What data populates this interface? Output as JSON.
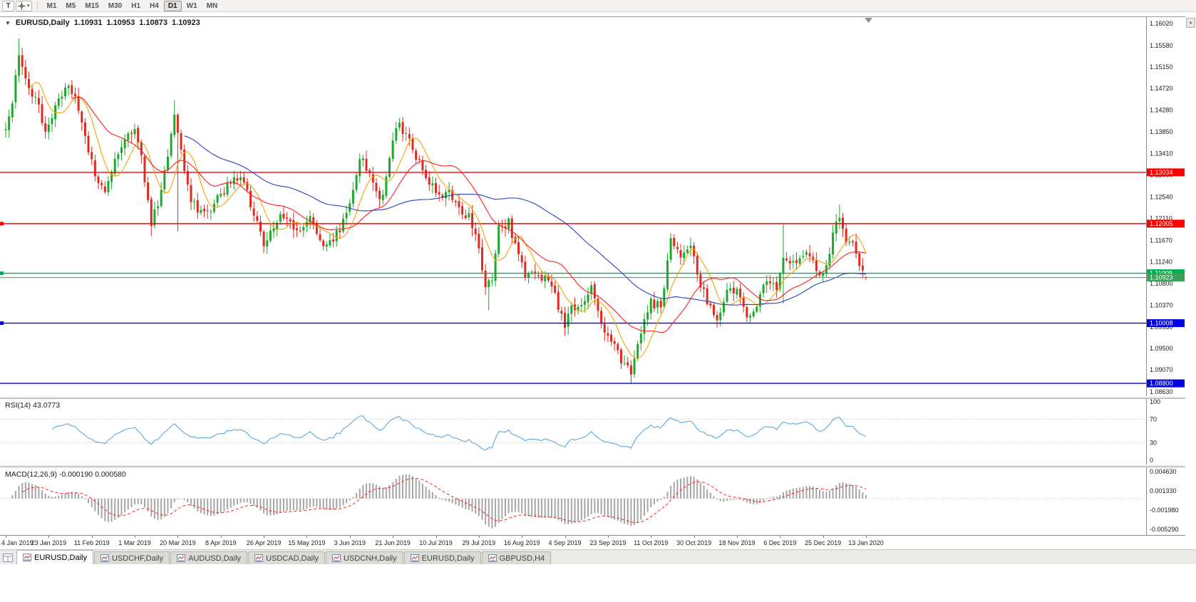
{
  "toolbar": {
    "t_button_label": "T",
    "timeframes": [
      "M1",
      "M5",
      "M15",
      "M30",
      "H1",
      "H4",
      "D1",
      "W1",
      "MN"
    ],
    "active_timeframe": "D1"
  },
  "chart": {
    "title": {
      "symbol_period": "EURUSD,Daily",
      "open": "1.10931",
      "high": "1.10953",
      "low": "1.10873",
      "close": "1.10923"
    },
    "current_price": {
      "label": "1.10923",
      "value": 1.10923,
      "color": "#3aa05a"
    }
  },
  "indicators": {
    "rsi": {
      "label": "RSI(14) 43.0773",
      "period": 14,
      "current_value": "43.0773",
      "levels": [
        70,
        30
      ],
      "axis_labels": [
        {
          "text": "100",
          "value": 100
        },
        {
          "text": "70",
          "value": 70
        },
        {
          "text": "30",
          "value": 30
        },
        {
          "text": "0",
          "value": 0
        }
      ],
      "color": "#5da9dc"
    },
    "macd": {
      "label": "MACD(12,26,9) -0.000190 0.000580",
      "fast": 12,
      "slow": 26,
      "signal": 9,
      "current_main": "-0.000190",
      "current_signal": "0.000580",
      "scale_top": 0.00463,
      "scale_bottom": -0.00529,
      "axis_labels": [
        {
          "text": "0.004630",
          "value": 0.00463
        },
        {
          "text": "0.001330",
          "value": 0.00133
        },
        {
          "text": "-0.001980",
          "value": -0.00198
        },
        {
          "text": "-0.005290",
          "value": -0.00529
        }
      ],
      "hist_color": "#a6a6a6",
      "signal_color": "#ff2020"
    }
  },
  "tabs": [
    {
      "label": "EURUSD,Daily",
      "active": true
    },
    {
      "label": "USDCHF,Daily",
      "active": false
    },
    {
      "label": "AUDUSD,Daily",
      "active": false
    },
    {
      "label": "USDCAD,Daily",
      "active": false
    },
    {
      "label": "USDCNH,Daily",
      "active": false
    },
    {
      "label": "EURUSD,Daily",
      "active": false
    },
    {
      "label": "GBPUSD,H4",
      "active": false
    }
  ],
  "chart_data": {
    "type": "candlestick",
    "symbol": "EURUSD",
    "timeframe": "Daily",
    "bar_count": 261,
    "bars_per_x_label": 13,
    "ylim": [
      1.0863,
      1.1602
    ],
    "y_ticks": [
      "1.16020",
      "1.15580",
      "1.15150",
      "1.14720",
      "1.14280",
      "1.13850",
      "1.13410",
      "1.12980",
      "1.12540",
      "1.12110",
      "1.11670",
      "1.11240",
      "1.10800",
      "1.10370",
      "1.09930",
      "1.09500",
      "1.09070",
      "1.08630"
    ],
    "x_labels": [
      "4 Jan 2019",
      "23 Jan 2019",
      "11 Feb 2019",
      "1 Mar 2019",
      "20 Mar 2019",
      "8 Apr 2019",
      "26 Apr 2019",
      "15 May 2019",
      "3 Jun 2019",
      "21 Jun 2019",
      "10 Jul 2019",
      "29 Jul 2019",
      "16 Aug 2019",
      "4 Sep 2019",
      "23 Sep 2019",
      "11 Oct 2019",
      "30 Oct 2019",
      "18 Nov 2019",
      "6 Dec 2019",
      "25 Dec 2019",
      "13 Jan 2020"
    ],
    "last_bar": {
      "open": 1.10931,
      "high": 1.10953,
      "low": 1.10873,
      "close": 1.10923
    },
    "price_path_anchors": [
      [
        0,
        1.1398
      ],
      [
        2,
        1.1445
      ],
      [
        4,
        1.1535
      ],
      [
        6,
        1.1485
      ],
      [
        9,
        1.145
      ],
      [
        12,
        1.1388
      ],
      [
        15,
        1.143
      ],
      [
        18,
        1.1478
      ],
      [
        21,
        1.1452
      ],
      [
        24,
        1.137
      ],
      [
        27,
        1.1295
      ],
      [
        30,
        1.127
      ],
      [
        33,
        1.133
      ],
      [
        36,
        1.1372
      ],
      [
        39,
        1.1398
      ],
      [
        41,
        1.133
      ],
      [
        44,
        1.1205
      ],
      [
        46,
        1.124
      ],
      [
        49,
        1.133
      ],
      [
        51,
        1.1425
      ],
      [
        53,
        1.134
      ],
      [
        56,
        1.1245
      ],
      [
        60,
        1.1218
      ],
      [
        63,
        1.124
      ],
      [
        66,
        1.1265
      ],
      [
        69,
        1.1302
      ],
      [
        72,
        1.128
      ],
      [
        75,
        1.1225
      ],
      [
        78,
        1.1155
      ],
      [
        80,
        1.1182
      ],
      [
        83,
        1.122
      ],
      [
        86,
        1.1198
      ],
      [
        89,
        1.1178
      ],
      [
        92,
        1.1208
      ],
      [
        95,
        1.1168
      ],
      [
        98,
        1.1158
      ],
      [
        101,
        1.1192
      ],
      [
        104,
        1.1242
      ],
      [
        107,
        1.1332
      ],
      [
        110,
        1.1308
      ],
      [
        113,
        1.1242
      ],
      [
        115,
        1.1292
      ],
      [
        117,
        1.1372
      ],
      [
        119,
        1.1398
      ],
      [
        122,
        1.1368
      ],
      [
        125,
        1.1322
      ],
      [
        128,
        1.1288
      ],
      [
        131,
        1.1252
      ],
      [
        134,
        1.1272
      ],
      [
        137,
        1.1228
      ],
      [
        140,
        1.1212
      ],
      [
        143,
        1.1148
      ],
      [
        145,
        1.1078
      ],
      [
        147,
        1.1088
      ],
      [
        149,
        1.1196
      ],
      [
        152,
        1.1202
      ],
      [
        155,
        1.1132
      ],
      [
        157,
        1.1098
      ],
      [
        160,
        1.1108
      ],
      [
        163,
        1.1088
      ],
      [
        166,
        1.1058
      ],
      [
        169,
        1.0992
      ],
      [
        171,
        1.1036
      ],
      [
        174,
        1.1028
      ],
      [
        177,
        1.1068
      ],
      [
        180,
        1.1005
      ],
      [
        183,
        1.0962
      ],
      [
        186,
        1.0925
      ],
      [
        189,
        1.0898
      ],
      [
        192,
        1.0982
      ],
      [
        195,
        1.1042
      ],
      [
        198,
        1.1032
      ],
      [
        201,
        1.1165
      ],
      [
        204,
        1.1132
      ],
      [
        207,
        1.1152
      ],
      [
        210,
        1.1078
      ],
      [
        213,
        1.1028
      ],
      [
        215,
        1.1008
      ],
      [
        218,
        1.1062
      ],
      [
        221,
        1.1072
      ],
      [
        224,
        1.1008
      ],
      [
        227,
        1.1042
      ],
      [
        230,
        1.1082
      ],
      [
        233,
        1.1068
      ],
      [
        235,
        1.1132
      ],
      [
        238,
        1.1122
      ],
      [
        241,
        1.1142
      ],
      [
        244,
        1.1122
      ],
      [
        247,
        1.1092
      ],
      [
        250,
        1.1178
      ],
      [
        252,
        1.1212
      ],
      [
        254,
        1.1172
      ],
      [
        256,
        1.1162
      ],
      [
        258,
        1.1122
      ],
      [
        260,
        1.10923
      ]
    ],
    "spikes": [
      {
        "i": 4,
        "high": 1.1572
      },
      {
        "i": 44,
        "low": 1.1176
      },
      {
        "i": 51,
        "high": 1.1448
      },
      {
        "i": 52,
        "low": 1.1185
      },
      {
        "i": 119,
        "high": 1.1412
      },
      {
        "i": 146,
        "low": 1.1027
      },
      {
        "i": 189,
        "low": 1.0879
      },
      {
        "i": 235,
        "high": 1.1199,
        "low": 1.104
      },
      {
        "i": 252,
        "high": 1.1239
      }
    ],
    "moving_averages": [
      {
        "type": "sma",
        "period": 8,
        "color": "#f5a400",
        "name": "ma-fast-line"
      },
      {
        "type": "sma",
        "period": 21,
        "color": "#ff1f1f",
        "name": "ma-mid-line"
      },
      {
        "type": "sma",
        "period": 55,
        "color": "#2b3fc4",
        "name": "ma-slow-line"
      }
    ],
    "hlines": [
      {
        "price": 1.13034,
        "label": "1.13034",
        "color": "#ff0000",
        "left_marker": false
      },
      {
        "price": 1.12005,
        "label": "1.12005",
        "color": "#ff0000",
        "left_marker": true
      },
      {
        "price": 1.11009,
        "label": "1.11009",
        "color": "#00b050",
        "left_marker": true
      },
      {
        "price": 1.10008,
        "label": "1.10008",
        "color": "#0000e0",
        "left_marker": true
      },
      {
        "price": 1.088,
        "label": "1.08800",
        "color": "#0000e0",
        "left_marker": false
      }
    ],
    "colors": {
      "up": "#1fa82e",
      "down": "#e02a20",
      "border": "#9a9a9a"
    }
  }
}
